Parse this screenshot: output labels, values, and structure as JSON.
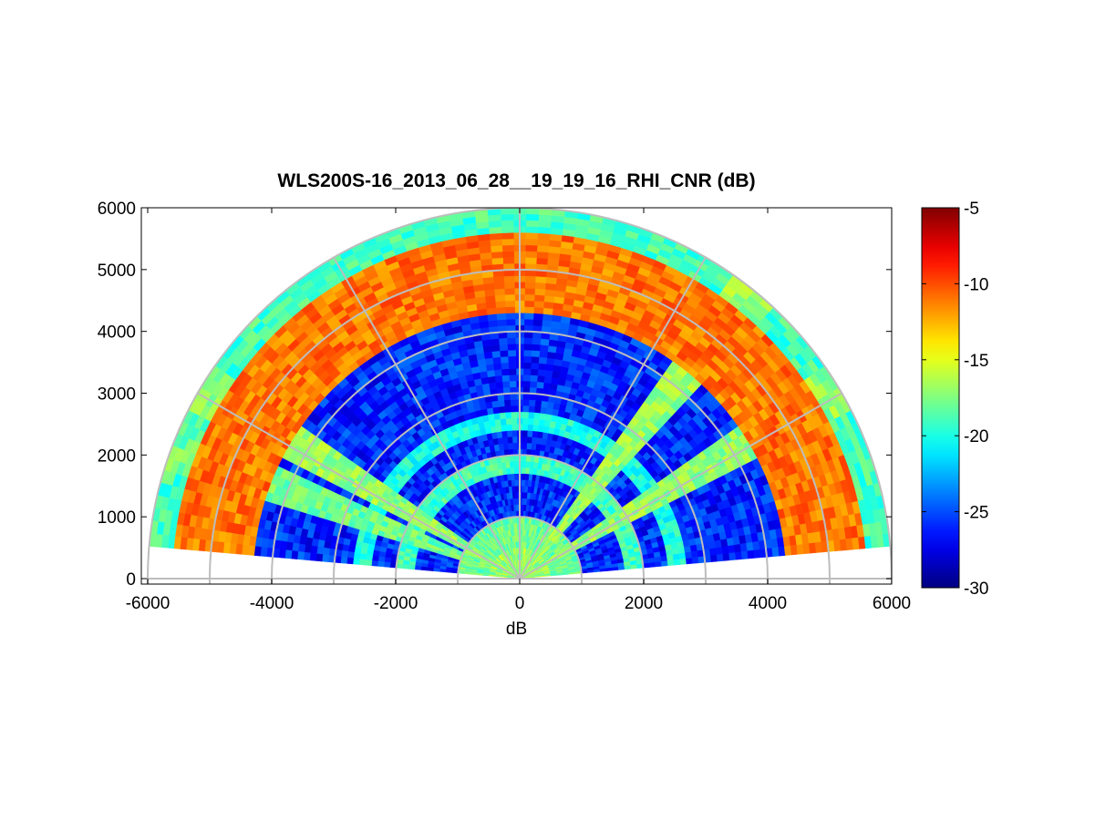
{
  "chart_data": {
    "type": "heatmap",
    "title": "WLS200S-16_2013_06_28__19_19_16_RHI_CNR (dB)",
    "xlabel": "dB",
    "ylabel": "",
    "xlim": [
      -6000,
      6000
    ],
    "ylim": [
      0,
      6000
    ],
    "xticks": [
      "-6000",
      "-4000",
      "-2000",
      "0",
      "2000",
      "4000",
      "6000"
    ],
    "yticks": [
      "0",
      "1000",
      "2000",
      "3000",
      "4000",
      "5000",
      "6000"
    ],
    "colorbar": {
      "range": [
        -30,
        -5
      ],
      "ticks": [
        "-5",
        "-10",
        "-15",
        "-20",
        "-25",
        "-30"
      ],
      "colormap": "jet"
    },
    "polar_grid": {
      "range_rings_m": [
        1000,
        2000,
        3000,
        4000,
        5000,
        6000
      ],
      "spokes_deg": [
        0,
        30,
        60,
        90,
        120,
        150,
        180
      ]
    },
    "scan": {
      "max_range_m": 6000,
      "elevation_start_deg": 5,
      "elevation_end_deg": 175
    },
    "features": [
      {
        "name": "aerosol layer",
        "range_m": [
          4300,
          5600
        ],
        "cnr_db": -11
      },
      {
        "name": "upper band",
        "range_m": [
          5600,
          6000
        ],
        "cnr_db": -19
      },
      {
        "name": "ring band",
        "range_m": [
          2400,
          2700
        ],
        "cnr_db": -20
      },
      {
        "name": "ring band",
        "range_m": [
          1700,
          2000
        ],
        "cnr_db": -19
      },
      {
        "name": "near-surface band",
        "range_m": [
          500,
          1000
        ],
        "cnr_db": -18
      },
      {
        "name": "slant beam",
        "elevation_deg": 31,
        "cnr_db": -17
      },
      {
        "name": "slant beam",
        "elevation_deg": 51,
        "cnr_db": -17
      },
      {
        "name": "slant beam",
        "elevation_deg": 149,
        "cnr_db": -17
      },
      {
        "name": "slant beam",
        "elevation_deg": 159,
        "cnr_db": -18
      }
    ],
    "background_cnr_db": -26
  }
}
